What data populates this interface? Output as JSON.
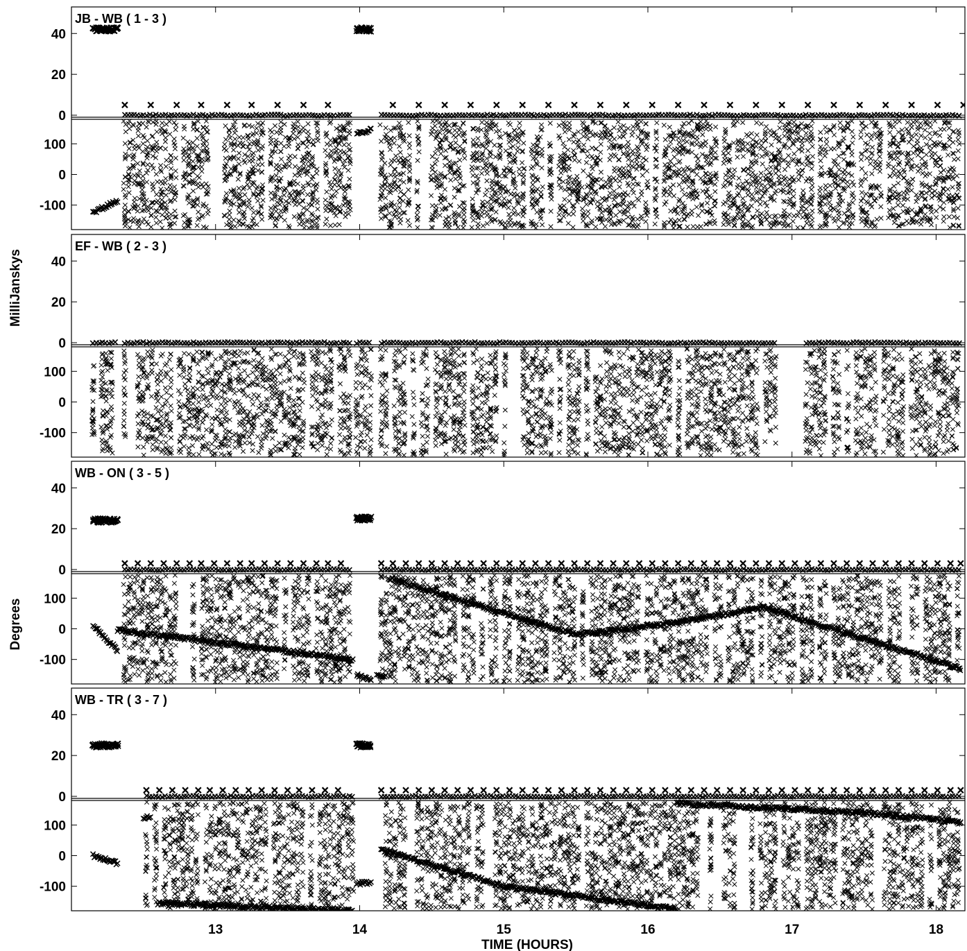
{
  "x_axis_label": "TIME (HOURS)",
  "ylabel_amplitude": "MilliJanskys",
  "ylabel_phase": "Degrees",
  "colors": {
    "marker": "#000000",
    "frame": "#000000",
    "background": "#ffffff"
  },
  "chart_data": {
    "type": "scatter",
    "marker": "x",
    "xlim": [
      12.0,
      18.2
    ],
    "x_ticks": [
      13,
      14,
      15,
      16,
      17,
      18
    ],
    "amplitude_ylim": [
      -1,
      53
    ],
    "amplitude_ticks": [
      0,
      20,
      40
    ],
    "phase_ylim": [
      -180,
      180
    ],
    "phase_ticks": [
      -100,
      0,
      100
    ],
    "grid": false,
    "panels": [
      {
        "title": "JB - WB ( 1 - 3 )",
        "amp_constant": [
          {
            "x0": 12.15,
            "x1": 12.32,
            "y": 42
          },
          {
            "x0": 13.98,
            "x1": 14.08,
            "y": 42
          }
        ],
        "amp_scan_start_spike": 5,
        "scan_times": [
          12.37,
          12.55,
          12.73,
          12.9,
          13.08,
          13.25,
          13.43,
          13.61,
          13.78,
          14.23,
          14.41,
          14.59,
          14.77,
          14.95,
          15.13,
          15.31,
          15.49,
          15.67,
          15.85,
          16.03,
          16.21,
          16.39,
          16.57,
          16.75,
          16.93,
          17.11,
          17.29,
          17.47,
          17.65,
          17.83,
          18.01,
          18.19
        ],
        "amp_zero_segments": [
          [
            12.37,
            13.95
          ],
          [
            14.15,
            18.17
          ]
        ],
        "phase_random_segments": [
          [
            12.37,
            13.95
          ],
          [
            14.15,
            18.17
          ]
        ],
        "phase_trend_segments": [
          {
            "x0": 12.15,
            "x1": 12.32,
            "y0": -125,
            "y1": -85
          },
          {
            "x0": 13.98,
            "x1": 14.08,
            "y0": 135,
            "y1": 145
          }
        ]
      },
      {
        "title": "EF - WB ( 2 - 3 )",
        "amp_constant": [],
        "amp_scan_start_spike": null,
        "scan_times": [],
        "amp_zero_segments": [
          [
            12.15,
            12.32
          ],
          [
            12.37,
            13.95
          ],
          [
            13.98,
            14.08
          ],
          [
            14.15,
            16.9
          ],
          [
            17.1,
            18.17
          ]
        ],
        "phase_random_segments": [
          [
            12.15,
            12.3
          ],
          [
            12.37,
            13.95
          ],
          [
            13.98,
            14.08
          ],
          [
            14.15,
            16.9
          ],
          [
            17.1,
            18.17
          ]
        ],
        "phase_trend_segments": []
      },
      {
        "title": "WB - ON ( 3 - 5 )",
        "amp_constant": [
          {
            "x0": 12.15,
            "x1": 12.32,
            "y": 24
          },
          {
            "x0": 13.98,
            "x1": 14.08,
            "y": 25
          }
        ],
        "amp_scan_start_spike": 3,
        "scan_times": [
          12.37,
          12.46,
          12.55,
          12.64,
          12.73,
          12.82,
          12.9,
          12.99,
          13.08,
          13.17,
          13.25,
          13.34,
          13.43,
          13.52,
          13.61,
          13.7,
          13.78,
          13.87,
          14.15,
          14.23,
          14.32,
          14.41,
          14.5,
          14.59,
          14.68,
          14.77,
          14.86,
          14.95,
          15.04,
          15.13,
          15.22,
          15.31,
          15.4,
          15.49,
          15.58,
          15.67,
          15.76,
          15.85,
          15.94,
          16.03,
          16.12,
          16.21,
          16.3,
          16.39,
          16.48,
          16.57,
          16.66,
          16.75,
          16.84,
          16.93,
          17.02,
          17.11,
          17.2,
          17.29,
          17.38,
          17.47,
          17.56,
          17.65,
          17.74,
          17.83,
          17.92,
          18.01,
          18.1,
          18.17
        ],
        "amp_zero_segments": [
          [
            12.37,
            13.95
          ],
          [
            14.15,
            18.17
          ]
        ],
        "phase_random_segments": [
          [
            12.37,
            13.95
          ],
          [
            14.15,
            18.17
          ]
        ],
        "phase_trend_segments": [
          {
            "x0": 12.15,
            "x1": 12.32,
            "y0": 10,
            "y1": -70
          },
          {
            "x0": 12.32,
            "x1": 13.95,
            "y0": -5,
            "y1": -100
          },
          {
            "x0": 13.98,
            "x1": 14.08,
            "y0": -150,
            "y1": -170
          },
          {
            "x0": 14.12,
            "x1": 14.18,
            "y0": -150,
            "y1": -155
          },
          {
            "x0": 14.2,
            "x1": 15.5,
            "y0": 165,
            "y1": -20
          },
          {
            "x0": 15.5,
            "x1": 16.2,
            "y0": -20,
            "y1": 20
          },
          {
            "x0": 16.2,
            "x1": 16.8,
            "y0": 20,
            "y1": 70
          },
          {
            "x0": 16.8,
            "x1": 18.17,
            "y0": 70,
            "y1": -130
          }
        ]
      },
      {
        "title": "WB - TR ( 3 - 7 )",
        "amp_constant": [
          {
            "x0": 12.15,
            "x1": 12.32,
            "y": 25
          },
          {
            "x0": 13.98,
            "x1": 14.08,
            "y": 25
          }
        ],
        "amp_scan_start_spike": 3,
        "scan_times": [
          12.52,
          12.61,
          12.7,
          12.79,
          12.88,
          12.96,
          13.05,
          13.14,
          13.23,
          13.32,
          13.41,
          13.5,
          13.58,
          13.67,
          13.76,
          13.85,
          14.15,
          14.23,
          14.32,
          14.41,
          14.5,
          14.59,
          14.68,
          14.77,
          14.86,
          14.95,
          15.04,
          15.13,
          15.22,
          15.31,
          15.4,
          15.49,
          15.58,
          15.67,
          15.76,
          15.85,
          15.94,
          16.03,
          16.12,
          16.21,
          16.3,
          16.39,
          16.48,
          16.57,
          16.66,
          16.75,
          16.84,
          16.93,
          17.02,
          17.11,
          17.2,
          17.29,
          17.38,
          17.47,
          17.56,
          17.65,
          17.74,
          17.83,
          17.92,
          18.01,
          18.1,
          18.17
        ],
        "amp_zero_segments": [
          [
            12.52,
            13.95
          ],
          [
            14.15,
            18.17
          ]
        ],
        "phase_random_segments": [
          [
            12.52,
            13.95
          ],
          [
            14.15,
            18.17
          ]
        ],
        "phase_trend_segments": [
          {
            "x0": 12.15,
            "x1": 12.32,
            "y0": 0,
            "y1": -25
          },
          {
            "x0": 12.5,
            "x1": 12.55,
            "y0": 125,
            "y1": 125
          },
          {
            "x0": 12.6,
            "x1": 13.95,
            "y0": -155,
            "y1": -180
          },
          {
            "x0": 13.98,
            "x1": 14.08,
            "y0": -90,
            "y1": -90
          },
          {
            "x0": 14.15,
            "x1": 15.0,
            "y0": 20,
            "y1": -100
          },
          {
            "x0": 15.0,
            "x1": 16.2,
            "y0": -100,
            "y1": -175
          },
          {
            "x0": 16.2,
            "x1": 17.5,
            "y0": 170,
            "y1": 140
          },
          {
            "x0": 17.5,
            "x1": 18.17,
            "y0": 140,
            "y1": 110
          }
        ]
      }
    ]
  }
}
